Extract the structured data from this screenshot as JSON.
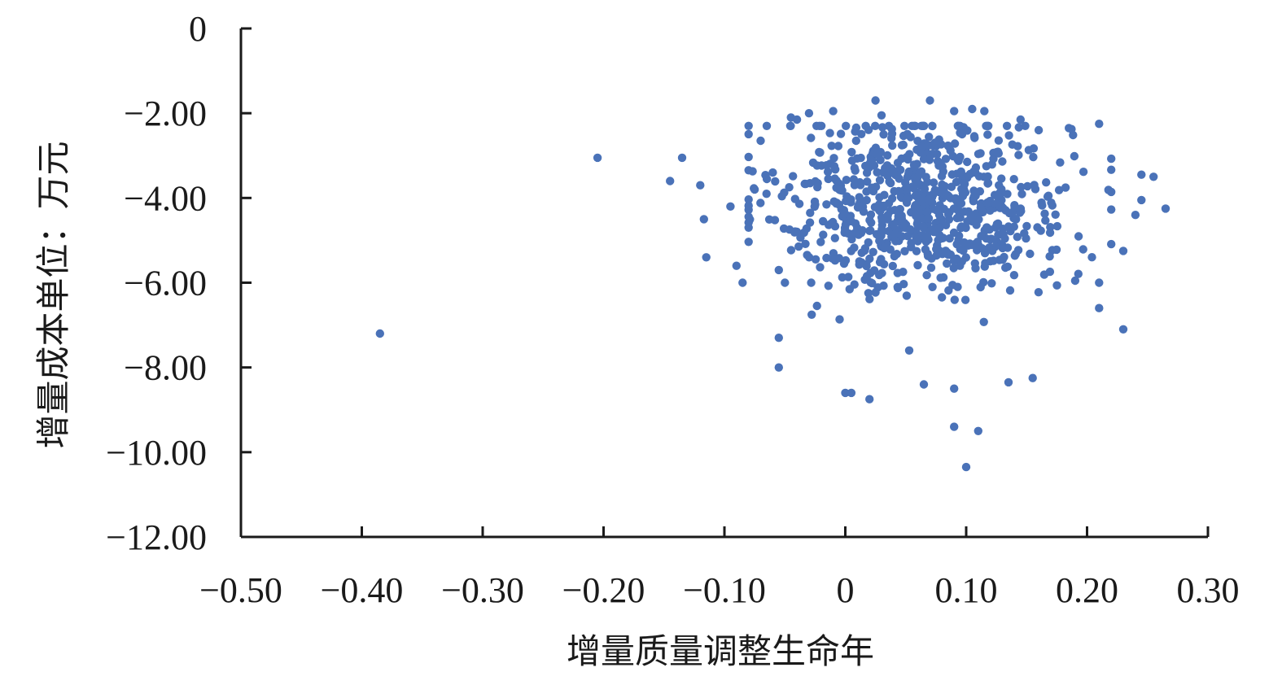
{
  "chart_data": {
    "type": "scatter",
    "title": "",
    "xlabel": "增量质量调整生命年",
    "ylabel": "增量成本单位：万元",
    "xlim": [
      -0.5,
      0.3
    ],
    "ylim": [
      -12,
      0
    ],
    "x_ticks": [
      -0.5,
      -0.4,
      -0.3,
      -0.2,
      -0.1,
      0,
      0.1,
      0.2,
      0.3
    ],
    "x_tick_labels": [
      "−0.50",
      "−0.40",
      "−0.30",
      "−0.20",
      "−0.10",
      "0",
      "0.10",
      "0.20",
      "0.30"
    ],
    "y_ticks": [
      0,
      -2,
      -4,
      -6,
      -8,
      -10,
      -12
    ],
    "y_tick_labels": [
      "0",
      "−2.00",
      "−4.00",
      "−6.00",
      "−8.00",
      "−10.00",
      "−12.00"
    ],
    "grid": false,
    "legend": "none",
    "marker_color": "#4a72b8",
    "series": [
      {
        "points": [
          [
            -0.385,
            -7.2
          ],
          [
            -0.205,
            -3.05
          ],
          [
            -0.135,
            -3.05
          ],
          [
            -0.145,
            -3.6
          ],
          [
            -0.12,
            -3.7
          ],
          [
            -0.117,
            -4.5
          ],
          [
            -0.115,
            -5.4
          ],
          [
            -0.095,
            -4.2
          ],
          [
            -0.09,
            -5.6
          ],
          [
            -0.085,
            -6.0
          ],
          [
            -0.08,
            -4.7
          ],
          [
            -0.075,
            -3.8
          ],
          [
            -0.07,
            -2.65
          ],
          [
            -0.065,
            -2.3
          ],
          [
            -0.06,
            -3.4
          ],
          [
            -0.055,
            -5.7
          ],
          [
            -0.05,
            -6.0
          ],
          [
            -0.055,
            -7.3
          ],
          [
            -0.055,
            -8.0
          ],
          [
            -0.04,
            -4.8
          ],
          [
            0.1,
            -10.35
          ],
          [
            0.09,
            -9.4
          ],
          [
            0.11,
            -9.5
          ],
          [
            0.02,
            -8.75
          ],
          [
            0.0,
            -8.6
          ],
          [
            0.005,
            -8.6
          ],
          [
            0.09,
            -8.5
          ],
          [
            0.065,
            -8.4
          ],
          [
            0.135,
            -8.35
          ],
          [
            0.155,
            -8.25
          ],
          [
            0.265,
            -4.25
          ],
          [
            0.255,
            -3.5
          ],
          [
            0.245,
            -3.45
          ],
          [
            0.245,
            -4.05
          ],
          [
            0.24,
            -4.4
          ],
          [
            0.23,
            -5.25
          ],
          [
            0.23,
            -7.1
          ],
          [
            0.21,
            -6.6
          ],
          [
            0.21,
            -6.0
          ],
          [
            0.21,
            -2.25
          ],
          [
            0.07,
            -1.7
          ],
          [
            0.025,
            -1.7
          ],
          [
            0.105,
            -1.9
          ],
          [
            0.115,
            -1.95
          ],
          [
            0.09,
            -1.95
          ],
          [
            -0.01,
            -1.95
          ],
          [
            -0.03,
            -2.0
          ],
          [
            -0.045,
            -2.1
          ],
          [
            -0.04,
            -2.15
          ],
          [
            0.03,
            -2.05
          ],
          [
            0.145,
            -2.15
          ],
          [
            0.185,
            -2.35
          ],
          [
            0.16,
            -2.4
          ]
        ],
        "cluster": {
          "count": 780,
          "x_center": 0.065,
          "x_sd": 0.06,
          "x_range": [
            -0.08,
            0.22
          ],
          "y_center": -4.15,
          "y_sd": 1.05,
          "y_range": [
            -7.6,
            -2.3
          ]
        }
      }
    ]
  }
}
